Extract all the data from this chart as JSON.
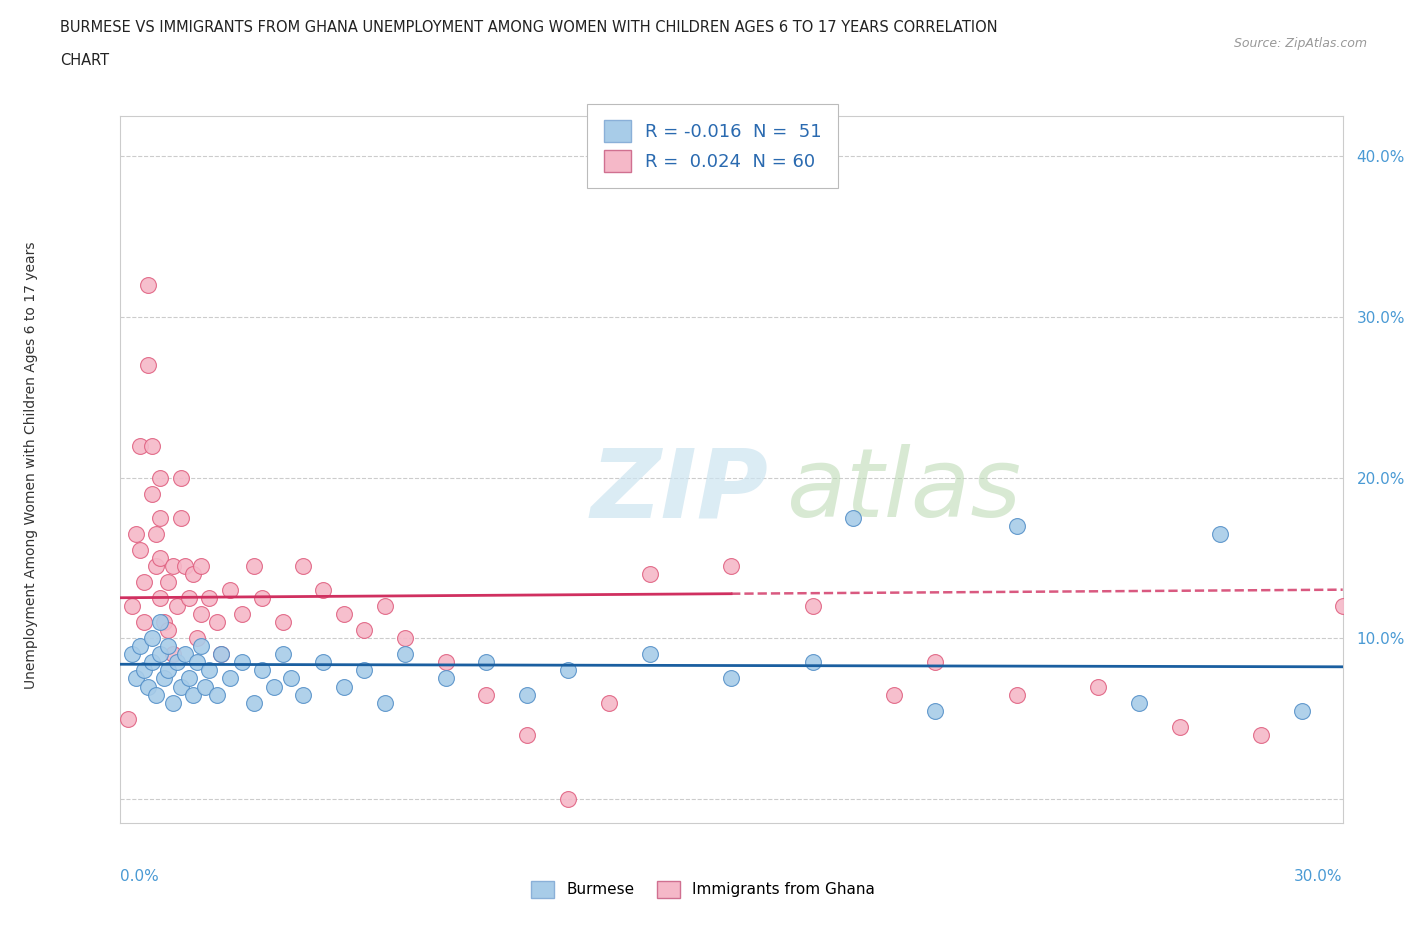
{
  "title_line1": "BURMESE VS IMMIGRANTS FROM GHANA UNEMPLOYMENT AMONG WOMEN WITH CHILDREN AGES 6 TO 17 YEARS CORRELATION",
  "title_line2": "CHART",
  "source": "Source: ZipAtlas.com",
  "ylabel": "Unemployment Among Women with Children Ages 6 to 17 years",
  "x_min": 0.0,
  "x_max": 0.3,
  "y_min": -0.015,
  "y_max": 0.425,
  "y_ticks": [
    0.0,
    0.1,
    0.2,
    0.3,
    0.4
  ],
  "y_tick_labels": [
    "",
    "10.0%",
    "20.0%",
    "30.0%",
    "40.0%"
  ],
  "legend_text1": "R = -0.016  N =  51",
  "legend_text2": "R =  0.024  N = 60",
  "burmese_color": "#a8cce8",
  "ghana_color": "#f5b8c8",
  "burmese_edge": "#5590c8",
  "ghana_edge": "#e06080",
  "trend_burmese_color": "#1a5fa0",
  "trend_ghana_color": "#d03060",
  "legend_text_color": "#2a6ab0",
  "tick_color": "#4a9ad4",
  "burmese_R": -0.016,
  "ghana_R": 0.024,
  "burmese_x": [
    0.003,
    0.004,
    0.005,
    0.006,
    0.007,
    0.008,
    0.008,
    0.009,
    0.01,
    0.01,
    0.011,
    0.012,
    0.012,
    0.013,
    0.014,
    0.015,
    0.016,
    0.017,
    0.018,
    0.019,
    0.02,
    0.021,
    0.022,
    0.024,
    0.025,
    0.027,
    0.03,
    0.033,
    0.035,
    0.038,
    0.04,
    0.042,
    0.045,
    0.05,
    0.055,
    0.06,
    0.065,
    0.07,
    0.08,
    0.09,
    0.1,
    0.11,
    0.13,
    0.15,
    0.17,
    0.18,
    0.2,
    0.22,
    0.25,
    0.27,
    0.29
  ],
  "burmese_y": [
    0.09,
    0.075,
    0.095,
    0.08,
    0.07,
    0.1,
    0.085,
    0.065,
    0.11,
    0.09,
    0.075,
    0.095,
    0.08,
    0.06,
    0.085,
    0.07,
    0.09,
    0.075,
    0.065,
    0.085,
    0.095,
    0.07,
    0.08,
    0.065,
    0.09,
    0.075,
    0.085,
    0.06,
    0.08,
    0.07,
    0.09,
    0.075,
    0.065,
    0.085,
    0.07,
    0.08,
    0.06,
    0.09,
    0.075,
    0.085,
    0.065,
    0.08,
    0.09,
    0.075,
    0.085,
    0.175,
    0.055,
    0.17,
    0.06,
    0.165,
    0.055
  ],
  "ghana_x": [
    0.002,
    0.003,
    0.004,
    0.005,
    0.005,
    0.006,
    0.006,
    0.007,
    0.007,
    0.008,
    0.008,
    0.009,
    0.009,
    0.01,
    0.01,
    0.01,
    0.01,
    0.011,
    0.012,
    0.012,
    0.013,
    0.013,
    0.014,
    0.015,
    0.015,
    0.016,
    0.017,
    0.018,
    0.019,
    0.02,
    0.02,
    0.022,
    0.024,
    0.025,
    0.027,
    0.03,
    0.033,
    0.035,
    0.04,
    0.045,
    0.05,
    0.055,
    0.06,
    0.065,
    0.07,
    0.08,
    0.09,
    0.1,
    0.11,
    0.12,
    0.13,
    0.15,
    0.17,
    0.19,
    0.2,
    0.22,
    0.24,
    0.26,
    0.28,
    0.3
  ],
  "ghana_y": [
    0.05,
    0.12,
    0.165,
    0.22,
    0.155,
    0.135,
    0.11,
    0.32,
    0.27,
    0.22,
    0.19,
    0.165,
    0.145,
    0.2,
    0.175,
    0.15,
    0.125,
    0.11,
    0.135,
    0.105,
    0.09,
    0.145,
    0.12,
    0.2,
    0.175,
    0.145,
    0.125,
    0.14,
    0.1,
    0.145,
    0.115,
    0.125,
    0.11,
    0.09,
    0.13,
    0.115,
    0.145,
    0.125,
    0.11,
    0.145,
    0.13,
    0.115,
    0.105,
    0.12,
    0.1,
    0.085,
    0.065,
    0.04,
    0.0,
    0.06,
    0.14,
    0.145,
    0.12,
    0.065,
    0.085,
    0.065,
    0.07,
    0.045,
    0.04,
    0.12
  ],
  "trend_burmese_intercept": 0.091,
  "trend_burmese_slope": -0.003,
  "trend_ghana_intercept": 0.11,
  "trend_ghana_slope": 0.2
}
